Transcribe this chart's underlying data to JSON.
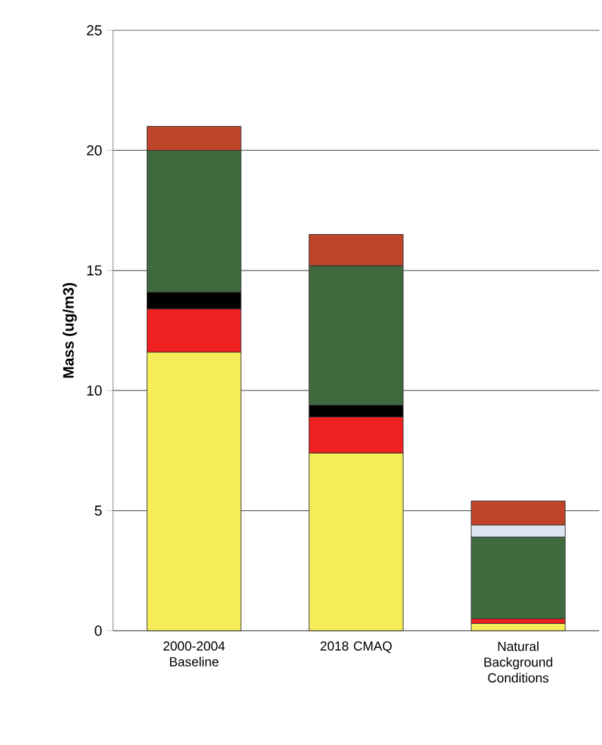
{
  "chart_data": {
    "type": "bar",
    "stacked": true,
    "ylabel": "Mass (ug/m3)",
    "categories": [
      "2000-2004 Baseline",
      "2018 CMAQ",
      "Natural Background Conditions"
    ],
    "series": [
      {
        "color": "#f5ee58",
        "values": [
          11.6,
          7.4,
          0.3
        ]
      },
      {
        "color": "#ee2020",
        "values": [
          1.8,
          1.5,
          0.2
        ]
      },
      {
        "color": "#000000",
        "values": [
          0.7,
          0.5,
          null
        ]
      },
      {
        "color": "#3e6a3e",
        "values": [
          5.9,
          5.8,
          3.4
        ]
      },
      {
        "color": "#dde6f0",
        "values": [
          null,
          null,
          0.5
        ]
      },
      {
        "color": "#c0442a",
        "values": [
          1.0,
          1.3,
          1.0
        ]
      }
    ],
    "ylim": [
      0,
      25
    ],
    "yticks": [
      0,
      5,
      10,
      15,
      20,
      25
    ],
    "grid": "y"
  }
}
